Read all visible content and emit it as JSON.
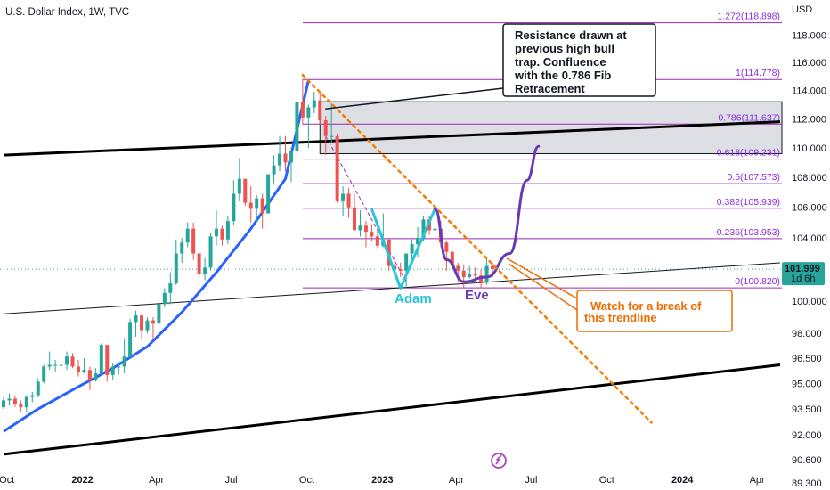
{
  "header": {
    "title": "U.S. Dollar Index, 1W, TVC",
    "currency": "USD"
  },
  "price_tag": {
    "value": "101.999",
    "countdown": "1d 6h"
  },
  "colors": {
    "up": "#26a69a",
    "down": "#ef5350",
    "ma": "#2962ff",
    "fib": "#9c27b0",
    "trend": "#f57c00",
    "adam": "#26c6da",
    "eve": "#673ab7",
    "note_text": "#ef6c00",
    "axis_text": "#131722"
  },
  "annotations": {
    "resistance_note": [
      "Resistance drawn at",
      "previous high bull",
      "trap.  Confluence",
      "with the 0.786 Fib",
      "Retracement"
    ],
    "trend_note": [
      "Watch for a break of",
      "this trendline"
    ],
    "adam": "Adam",
    "eve": "Eve"
  },
  "chart_data": {
    "type": "candlestick",
    "title": "U.S. Dollar Index, 1W, TVC",
    "ylabel": "USD",
    "ylim": [
      88.9,
      120.6
    ],
    "y_scale": "log",
    "y_ticks": [
      "118.000",
      "116.000",
      "114.000",
      "112.000",
      "110.000",
      "108.000",
      "106.000",
      "104.000",
      "100.000",
      "98.000",
      "96.500",
      "95.000",
      "93.500",
      "92.000",
      "90.600",
      "89.300"
    ],
    "x_ticks": [
      "Oct",
      "2022",
      "Apr",
      "Jul",
      "Oct",
      "2023",
      "Apr",
      "Jul",
      "Oct",
      "2024",
      "Apr"
    ],
    "x_range": [
      "2021-09-27",
      "2024-04-29"
    ],
    "last_price": 101.999,
    "fib_levels": [
      {
        "ratio": "1.272",
        "value": 118.898
      },
      {
        "ratio": "1",
        "value": 114.778
      },
      {
        "ratio": "0.786",
        "value": 111.637
      },
      {
        "ratio": "0.618",
        "value": 109.231
      },
      {
        "ratio": "0.5",
        "value": 107.573
      },
      {
        "ratio": "0.382",
        "value": 105.939
      },
      {
        "ratio": "0.236",
        "value": 103.953
      },
      {
        "ratio": "0",
        "value": 100.82
      }
    ],
    "resistance_zone": {
      "from": "2022-10-17",
      "to": "2024-04-29",
      "low": 109.6,
      "high": 113.2
    },
    "series": [
      {
        "name": "",
        "kind": "candles",
        "columns": [
          "date",
          "open",
          "high",
          "low",
          "close"
        ],
        "values": [
          [
            "2021-09-27",
            93.6,
            94.2,
            93.5,
            94.0
          ],
          [
            "2021-10-04",
            94.0,
            94.4,
            93.7,
            94.1
          ],
          [
            "2021-10-11",
            94.1,
            94.3,
            93.6,
            93.8
          ],
          [
            "2021-10-18",
            93.8,
            94.0,
            93.3,
            93.6
          ],
          [
            "2021-10-25",
            93.6,
            94.3,
            93.3,
            94.2
          ],
          [
            "2021-11-01",
            94.2,
            94.5,
            93.9,
            94.3
          ],
          [
            "2021-11-08",
            94.3,
            95.3,
            94.2,
            95.1
          ],
          [
            "2021-11-15",
            95.1,
            96.1,
            95.0,
            96.0
          ],
          [
            "2021-11-22",
            96.0,
            96.9,
            95.8,
            96.1
          ],
          [
            "2021-11-29",
            96.1,
            96.4,
            95.7,
            96.1
          ],
          [
            "2021-12-06",
            96.1,
            96.4,
            95.8,
            96.1
          ],
          [
            "2021-12-13",
            96.1,
            96.9,
            95.8,
            96.6
          ],
          [
            "2021-12-20",
            96.6,
            96.8,
            95.9,
            96.0
          ],
          [
            "2021-12-27",
            96.0,
            96.4,
            95.4,
            95.7
          ],
          [
            "2022-01-03",
            95.7,
            96.5,
            95.6,
            95.8
          ],
          [
            "2022-01-10",
            95.8,
            96.0,
            94.6,
            95.2
          ],
          [
            "2022-01-17",
            95.2,
            95.9,
            95.1,
            95.6
          ],
          [
            "2022-01-24",
            95.6,
            97.4,
            95.5,
            97.3
          ],
          [
            "2022-01-31",
            97.3,
            97.3,
            95.1,
            95.5
          ],
          [
            "2022-02-07",
            95.5,
            96.2,
            95.2,
            96.0
          ],
          [
            "2022-02-14",
            96.0,
            96.3,
            95.5,
            96.0
          ],
          [
            "2022-02-21",
            96.0,
            97.7,
            95.6,
            96.6
          ],
          [
            "2022-02-28",
            96.6,
            98.9,
            96.5,
            98.7
          ],
          [
            "2022-03-07",
            98.7,
            99.4,
            97.8,
            99.1
          ],
          [
            "2022-03-14",
            99.1,
            99.1,
            97.7,
            98.2
          ],
          [
            "2022-03-21",
            98.2,
            99.0,
            98.0,
            98.8
          ],
          [
            "2022-03-28",
            98.8,
            99.0,
            97.7,
            98.6
          ],
          [
            "2022-04-04",
            98.6,
            100.3,
            98.6,
            99.8
          ],
          [
            "2022-04-11",
            99.8,
            100.8,
            99.6,
            100.5
          ],
          [
            "2022-04-18",
            100.5,
            101.8,
            99.8,
            101.1
          ],
          [
            "2022-04-25",
            101.1,
            103.9,
            101.0,
            103.0
          ],
          [
            "2022-05-02",
            103.0,
            104.0,
            102.4,
            103.7
          ],
          [
            "2022-05-09",
            103.7,
            105.0,
            103.4,
            104.6
          ],
          [
            "2022-05-16",
            104.6,
            105.0,
            102.6,
            103.0
          ],
          [
            "2022-05-23",
            103.0,
            103.2,
            101.4,
            101.7
          ],
          [
            "2022-05-30",
            101.7,
            102.7,
            101.3,
            102.1
          ],
          [
            "2022-06-06",
            102.1,
            104.3,
            101.9,
            104.1
          ],
          [
            "2022-06-13",
            104.1,
            105.8,
            103.5,
            104.6
          ],
          [
            "2022-06-20",
            104.6,
            104.8,
            103.5,
            103.9
          ],
          [
            "2022-06-27",
            103.9,
            105.4,
            103.6,
            105.1
          ],
          [
            "2022-07-04",
            105.1,
            107.8,
            104.8,
            106.9
          ],
          [
            "2022-07-11",
            106.9,
            109.3,
            106.4,
            107.9
          ],
          [
            "2022-07-18",
            107.9,
            107.9,
            106.1,
            106.3
          ],
          [
            "2022-07-25",
            106.3,
            107.4,
            105.0,
            105.9
          ],
          [
            "2022-08-01",
            105.9,
            106.8,
            105.0,
            106.6
          ],
          [
            "2022-08-08",
            106.6,
            106.9,
            104.6,
            105.6
          ],
          [
            "2022-08-15",
            105.6,
            108.2,
            105.6,
            108.2
          ],
          [
            "2022-08-22",
            108.2,
            109.5,
            107.6,
            108.8
          ],
          [
            "2022-08-29",
            108.8,
            110.8,
            108.4,
            109.6
          ],
          [
            "2022-09-05",
            109.6,
            110.8,
            108.4,
            109.0
          ],
          [
            "2022-09-12",
            109.0,
            110.0,
            107.7,
            109.8
          ],
          [
            "2022-09-19",
            109.8,
            113.3,
            109.3,
            113.2
          ],
          [
            "2022-09-26",
            113.2,
            114.8,
            111.6,
            112.1
          ],
          [
            "2022-10-03",
            112.1,
            113.0,
            110.0,
            112.8
          ],
          [
            "2022-10-10",
            112.8,
            113.9,
            112.4,
            113.3
          ],
          [
            "2022-10-17",
            113.3,
            113.9,
            111.6,
            111.9
          ],
          [
            "2022-10-24",
            111.9,
            112.2,
            109.5,
            110.8
          ],
          [
            "2022-10-31",
            110.8,
            113.1,
            110.3,
            110.8
          ],
          [
            "2022-11-07",
            110.8,
            111.0,
            106.3,
            106.4
          ],
          [
            "2022-11-14",
            106.4,
            107.4,
            105.4,
            106.9
          ],
          [
            "2022-11-21",
            106.9,
            107.3,
            105.3,
            106.0
          ],
          [
            "2022-11-28",
            106.0,
            106.9,
            104.5,
            104.5
          ],
          [
            "2022-12-05",
            104.5,
            105.8,
            104.1,
            104.8
          ],
          [
            "2022-12-12",
            104.8,
            105.1,
            103.4,
            104.4
          ],
          [
            "2022-12-19",
            104.4,
            104.9,
            103.8,
            104.1
          ],
          [
            "2022-12-26",
            104.1,
            104.6,
            103.4,
            103.5
          ],
          [
            "2023-01-02",
            103.5,
            105.6,
            103.4,
            103.9
          ],
          [
            "2023-01-09",
            103.9,
            103.9,
            101.9,
            102.2
          ],
          [
            "2023-01-16",
            102.2,
            102.9,
            101.5,
            102.0
          ],
          [
            "2023-01-23",
            102.0,
            102.4,
            101.5,
            101.9
          ],
          [
            "2023-01-30",
            101.9,
            103.0,
            100.8,
            103.0
          ],
          [
            "2023-02-06",
            103.0,
            103.9,
            102.6,
            103.6
          ],
          [
            "2023-02-13",
            103.6,
            104.7,
            102.8,
            104.0
          ],
          [
            "2023-02-20",
            104.0,
            105.4,
            103.8,
            105.2
          ],
          [
            "2023-02-27",
            105.2,
            105.4,
            104.2,
            104.5
          ],
          [
            "2023-03-06",
            104.5,
            105.9,
            104.1,
            104.6
          ],
          [
            "2023-03-13",
            104.6,
            105.1,
            103.4,
            103.7
          ],
          [
            "2023-03-20",
            103.7,
            103.8,
            101.9,
            103.1
          ],
          [
            "2023-03-27",
            103.1,
            103.2,
            101.9,
            102.2
          ],
          [
            "2023-04-03",
            102.2,
            102.4,
            101.2,
            101.9
          ],
          [
            "2023-04-10",
            101.9,
            102.3,
            100.8,
            101.5
          ],
          [
            "2023-04-17",
            101.5,
            102.2,
            101.4,
            101.7
          ],
          [
            "2023-04-24",
            101.7,
            102.1,
            101.1,
            101.6
          ],
          [
            "2023-05-01",
            101.6,
            102.0,
            100.8,
            101.2
          ],
          [
            "2023-05-08",
            101.2,
            102.7,
            101.0,
            102.2
          ],
          [
            "2023-05-15",
            102.2,
            102.4,
            101.5,
            101.999
          ]
        ]
      },
      {
        "name": "",
        "kind": "moving_average",
        "columns": [
          "date",
          "value"
        ],
        "values": [
          [
            "2021-09-27",
            92.2
          ],
          [
            "2021-11-08",
            93.5
          ],
          [
            "2021-12-27",
            94.8
          ],
          [
            "2022-02-07",
            95.9
          ],
          [
            "2022-03-21",
            97.2
          ],
          [
            "2022-05-02",
            99.3
          ],
          [
            "2022-06-13",
            101.8
          ],
          [
            "2022-07-25",
            104.6
          ],
          [
            "2022-09-05",
            107.9
          ],
          [
            "2022-10-03",
            114.7
          ]
        ]
      }
    ],
    "drawings": {
      "black_channel_upper": [
        [
          "2021-09-27",
          109.5
        ],
        [
          "2024-04-29",
          111.8
        ]
      ],
      "black_channel_lower": [
        [
          "2021-09-27",
          90.9
        ],
        [
          "2024-04-29",
          96.1
        ]
      ],
      "support_line": [
        [
          "2021-09-27",
          99.2
        ],
        [
          "2024-04-29",
          102.4
        ]
      ],
      "orange_trendline": [
        [
          "2022-09-26",
          115.1
        ],
        [
          "2023-10-23",
          94.0
        ]
      ],
      "purple_dashed": [
        [
          "2022-10-24",
          110.8
        ],
        [
          "2023-01-30",
          101.2
        ]
      ],
      "adam_path": [
        [
          "2022-12-19",
          105.9
        ],
        [
          "2023-01-23",
          100.8
        ],
        [
          "2023-03-06",
          105.9
        ]
      ],
      "eve_path": [
        [
          "2023-03-06",
          105.9
        ],
        [
          "2023-03-20",
          102.6
        ],
        [
          "2023-04-10",
          101.2
        ],
        [
          "2023-05-08",
          101.5
        ],
        [
          "2023-06-05",
          103.0
        ],
        [
          "2023-06-26",
          107.8
        ],
        [
          "2023-07-10",
          110.1
        ]
      ]
    },
    "grid": false,
    "legend": "none"
  }
}
